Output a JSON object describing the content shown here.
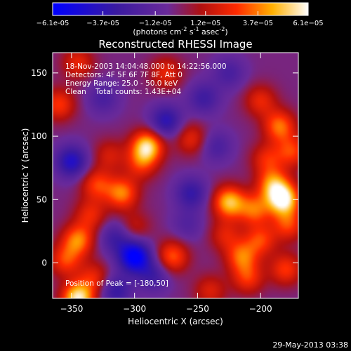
{
  "chart_data": {
    "type": "heatmap",
    "title": "Reconstructed RHESSI Image",
    "xlabel": "Heliocentric X (arcsec)",
    "ylabel": "Heliocentric Y (arcsec)",
    "xlim": [
      -365,
      -170
    ],
    "ylim": [
      -28,
      166
    ],
    "x_ticks": [
      -350,
      -300,
      -250,
      -200
    ],
    "y_ticks": [
      0,
      50,
      100,
      150
    ],
    "grid": false,
    "colorbar": {
      "ticks": [
        -6.1e-05,
        -3.7e-05,
        -1.2e-05,
        1.2e-05,
        3.7e-05,
        6.1e-05
      ],
      "tick_labels": [
        "-6.1e-05",
        "-3.7e-05",
        "-1.2e-05",
        "1.2e-05",
        "3.7e-05",
        "6.1e-05"
      ],
      "range": [
        -6.1e-05,
        6.1e-05
      ],
      "unit_label": {
        "base": "(photons cm",
        "exp1": "-2",
        "mid1": " s",
        "exp2": "-1",
        "mid2": " asec",
        "exp3": "-2",
        "end": ")"
      },
      "colormap": "blue-purple-red-yellow-white"
    },
    "info_lines": [
      "18-Nov-2003 14:04:48.000 to 14:22:56.000",
      "Detectors: 4F 5F 6F 7F 8F, Att 0",
      "Energy Range: 25.0 - 50.0 keV",
      "Clean    Total counts: 1.43E+04"
    ],
    "peak_label": "Position of Peak = [-180,50]",
    "peak_position": [
      -180,
      50
    ],
    "blobs": [
      {
        "x": -182,
        "y": 50,
        "value": 6.1e-05
      },
      {
        "x": -190,
        "y": 62,
        "value": 4e-05
      },
      {
        "x": -178,
        "y": 30,
        "value": 3e-05
      },
      {
        "x": -225,
        "y": 48,
        "value": 5e-05
      },
      {
        "x": -205,
        "y": 42,
        "value": 3.5e-05
      },
      {
        "x": -200,
        "y": 18,
        "value": 3e-05
      },
      {
        "x": -215,
        "y": 5,
        "value": 3.5e-05
      },
      {
        "x": -228,
        "y": 22,
        "value": 2.2e-05
      },
      {
        "x": -210,
        "y": -12,
        "value": 2.8e-05
      },
      {
        "x": -240,
        "y": -22,
        "value": 2.2e-05
      },
      {
        "x": -180,
        "y": -5,
        "value": 3e-05
      },
      {
        "x": -185,
        "y": 108,
        "value": 3.8e-05
      },
      {
        "x": -175,
        "y": 88,
        "value": 3e-05
      },
      {
        "x": -200,
        "y": 128,
        "value": 2.5e-05
      },
      {
        "x": -195,
        "y": 82,
        "value": 2.5e-05
      },
      {
        "x": -290,
        "y": 92,
        "value": 5.5e-05
      },
      {
        "x": -310,
        "y": 55,
        "value": 4e-05
      },
      {
        "x": -330,
        "y": 62,
        "value": 3e-05
      },
      {
        "x": -295,
        "y": 78,
        "value": 2.5e-05
      },
      {
        "x": -345,
        "y": 18,
        "value": 4e-05
      },
      {
        "x": -355,
        "y": 2,
        "value": 3e-05
      },
      {
        "x": -335,
        "y": 38,
        "value": 2.5e-05
      },
      {
        "x": -345,
        "y": -28,
        "value": 6e-05
      },
      {
        "x": -332,
        "y": -12,
        "value": 2.5e-05
      },
      {
        "x": -270,
        "y": 5,
        "value": 3.5e-05
      },
      {
        "x": -255,
        "y": 98,
        "value": 2.5e-05
      },
      {
        "x": -360,
        "y": 125,
        "value": 3e-05
      },
      {
        "x": -345,
        "y": 158,
        "value": 2.5e-05
      },
      {
        "x": -275,
        "y": 150,
        "value": 2.5e-05
      },
      {
        "x": -320,
        "y": 85,
        "value": 2e-05
      },
      {
        "x": -300,
        "y": 28,
        "value": 1.8e-05
      },
      {
        "x": -300,
        "y": 5,
        "value": -6e-05
      },
      {
        "x": -285,
        "y": -10,
        "value": -2.5e-05
      },
      {
        "x": -350,
        "y": 80,
        "value": -4e-05
      },
      {
        "x": -275,
        "y": 112,
        "value": -3.5e-05
      },
      {
        "x": -255,
        "y": 55,
        "value": -3e-05
      },
      {
        "x": -325,
        "y": 130,
        "value": -2e-05
      },
      {
        "x": -315,
        "y": 20,
        "value": -2.5e-05
      },
      {
        "x": -225,
        "y": 150,
        "value": -2e-05
      },
      {
        "x": -245,
        "y": 130,
        "value": -2.5e-05
      },
      {
        "x": -315,
        "y": -22,
        "value": -3e-05
      },
      {
        "x": -258,
        "y": 30,
        "value": -1.5e-05
      },
      {
        "x": -235,
        "y": 92,
        "value": -2e-05
      }
    ]
  },
  "footer": {
    "date": "29-May-2013 03:38"
  }
}
